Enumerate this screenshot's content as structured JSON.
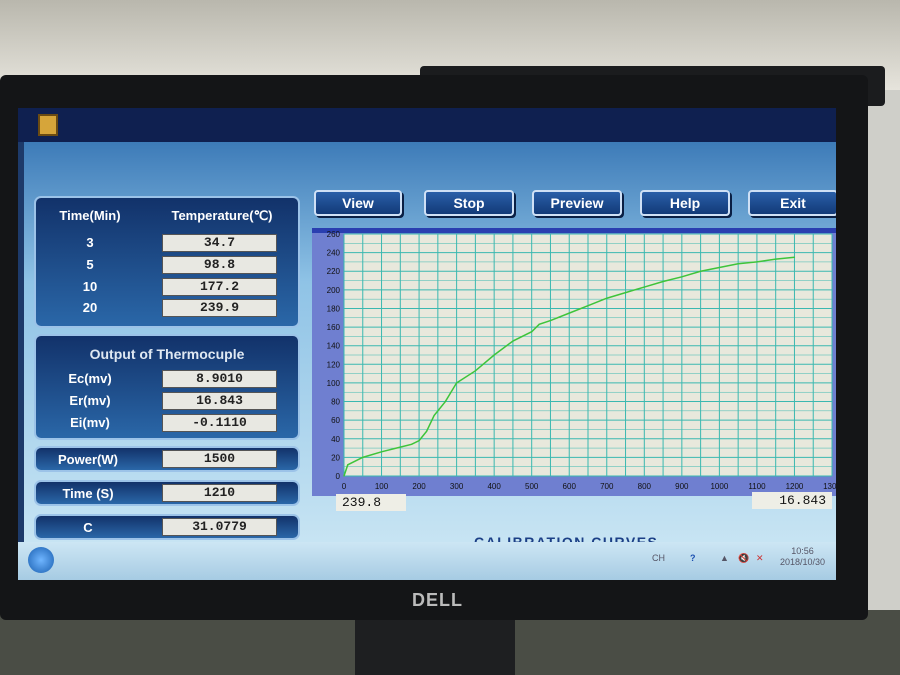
{
  "bezel_brand": "DELL",
  "toolbar": {
    "view": "View",
    "stop": "Stop",
    "preview": "Preview",
    "help": "Help",
    "exit": "Exit"
  },
  "temp_table": {
    "col_time": "Time(Min)",
    "col_temp": "Temperature(℃)",
    "rows": [
      {
        "time": "3",
        "temp": "34.7"
      },
      {
        "time": "5",
        "temp": "98.8"
      },
      {
        "time": "10",
        "temp": "177.2"
      },
      {
        "time": "20",
        "temp": "239.9"
      }
    ]
  },
  "thermocouple": {
    "title": "Output of Thermocuple",
    "rows": [
      {
        "label": "Ec(mv)",
        "value": "8.9010"
      },
      {
        "label": "Er(mv)",
        "value": "16.843"
      },
      {
        "label": "Ei(mv)",
        "value": "-0.1110"
      }
    ]
  },
  "power": {
    "label": "Power(W)",
    "value": "1500"
  },
  "time": {
    "label": "Time (S)",
    "value": "1210"
  },
  "c": {
    "label": "C",
    "value": "31.0779"
  },
  "chart_footer": {
    "left_value": "239.8",
    "right_value": "16.843",
    "title": "CALIBRATION CURVES"
  },
  "chart_data": {
    "type": "line",
    "title": "CALIBRATION CURVES",
    "xlim": [
      0,
      1300
    ],
    "ylim": [
      0,
      260
    ],
    "grid": true,
    "xticks": [
      0,
      100,
      200,
      300,
      400,
      500,
      600,
      700,
      800,
      900,
      1000,
      1100,
      1200,
      1300
    ],
    "yticks": [
      0,
      20,
      40,
      60,
      80,
      100,
      120,
      140,
      160,
      180,
      200,
      220,
      240,
      260
    ],
    "series": [
      {
        "color": "#3ec43a",
        "x": [
          0,
          10,
          50,
          100,
          150,
          180,
          200,
          220,
          240,
          270,
          300,
          350,
          400,
          450,
          500,
          520,
          550,
          600,
          650,
          700,
          750,
          800,
          850,
          900,
          950,
          1000,
          1050,
          1100,
          1150,
          1200
        ],
        "y": [
          0,
          12,
          20,
          26,
          31,
          34,
          38,
          48,
          65,
          80,
          100,
          113,
          130,
          145,
          155,
          163,
          167,
          175,
          183,
          191,
          197,
          203,
          209,
          214,
          220,
          224,
          228,
          230,
          233,
          235
        ]
      }
    ]
  },
  "taskbar": {
    "lang": "CH",
    "time": "10:56",
    "date": "2018/10/30"
  }
}
